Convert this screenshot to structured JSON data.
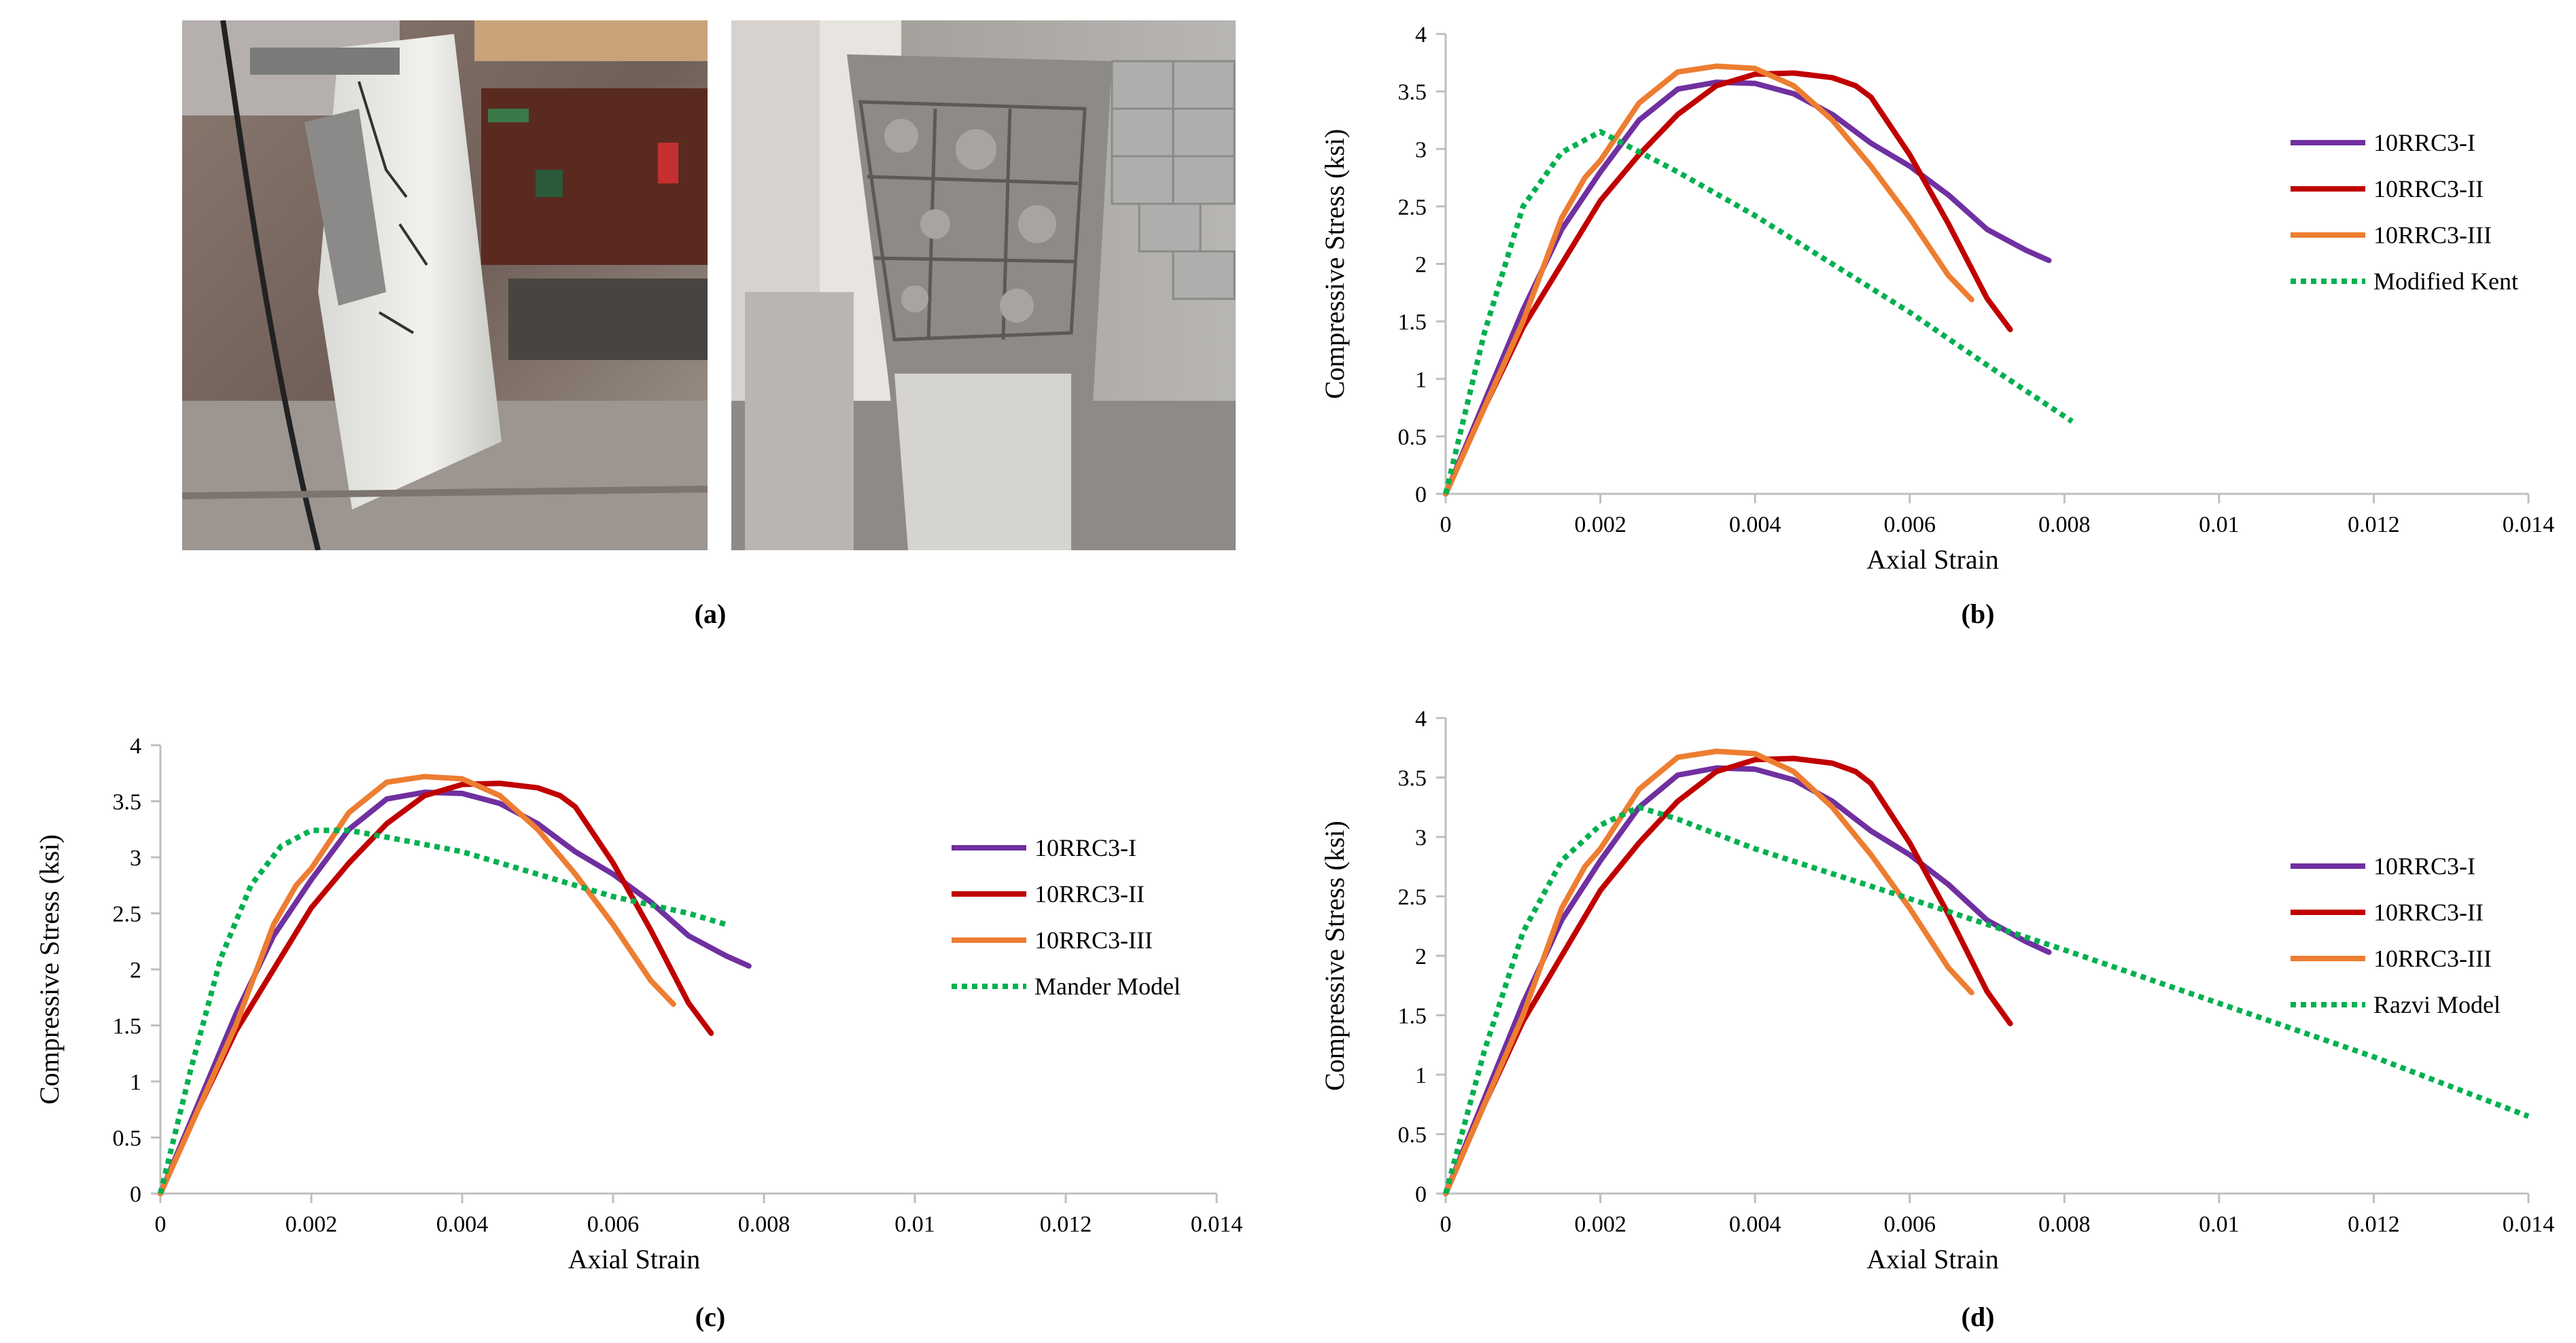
{
  "panel_labels": [
    "(a)",
    "(b)",
    "(c)",
    "(d)"
  ],
  "colors": {
    "purple": "#7030a0",
    "red": "#c00000",
    "orange": "#ed7d31",
    "green": "#00b050",
    "axis": "#bfbfbf"
  },
  "chart_data": [
    {
      "id": "b",
      "type": "line",
      "xlabel": "Axial Strain",
      "ylabel": "Compressive Stress (ksi)",
      "xlim": [
        0,
        0.014
      ],
      "ylim": [
        0,
        4
      ],
      "xticks": [
        "0",
        "0.002",
        "0.004",
        "0.006",
        "0.008",
        "0.01",
        "0.012",
        "0.014"
      ],
      "yticks": [
        "0",
        "0.5",
        "1",
        "1.5",
        "2",
        "2.5",
        "3",
        "3.5",
        "4"
      ],
      "legend_position": "right",
      "series": [
        {
          "name": "10RRC3-I",
          "color": "#7030a0",
          "dash": "solid",
          "x": [
            0,
            0.0005,
            0.001,
            0.0015,
            0.002,
            0.0025,
            0.003,
            0.0035,
            0.004,
            0.0045,
            0.005,
            0.0055,
            0.006,
            0.0065,
            0.007,
            0.0075,
            0.0078
          ],
          "y": [
            0,
            0.8,
            1.6,
            2.3,
            2.8,
            3.25,
            3.52,
            3.58,
            3.57,
            3.48,
            3.3,
            3.05,
            2.85,
            2.6,
            2.3,
            2.12,
            2.03
          ]
        },
        {
          "name": "10RRC3-II",
          "color": "#c00000",
          "dash": "solid",
          "x": [
            0,
            0.0005,
            0.001,
            0.0015,
            0.002,
            0.0025,
            0.003,
            0.0035,
            0.004,
            0.0045,
            0.005,
            0.0053,
            0.0055,
            0.006,
            0.0065,
            0.007,
            0.0073
          ],
          "y": [
            0,
            0.75,
            1.45,
            2.0,
            2.55,
            2.95,
            3.3,
            3.55,
            3.65,
            3.66,
            3.62,
            3.55,
            3.45,
            2.95,
            2.35,
            1.7,
            1.43
          ]
        },
        {
          "name": "10RRC3-III",
          "color": "#ed7d31",
          "dash": "solid",
          "x": [
            0,
            0.0005,
            0.001,
            0.0015,
            0.0018,
            0.002,
            0.0025,
            0.003,
            0.0035,
            0.004,
            0.0045,
            0.005,
            0.0055,
            0.006,
            0.0065,
            0.0068
          ],
          "y": [
            0,
            0.75,
            1.5,
            2.4,
            2.75,
            2.9,
            3.4,
            3.67,
            3.72,
            3.7,
            3.55,
            3.25,
            2.85,
            2.4,
            1.9,
            1.69
          ]
        },
        {
          "name": "Modified Kent",
          "color": "#00b050",
          "dash": "dotted",
          "x": [
            0,
            0.0005,
            0.001,
            0.0015,
            0.002,
            0.003,
            0.004,
            0.005,
            0.006,
            0.007,
            0.0081
          ],
          "y": [
            0,
            1.4,
            2.5,
            2.97,
            3.15,
            2.8,
            2.42,
            2.0,
            1.58,
            1.12,
            0.63
          ]
        }
      ]
    },
    {
      "id": "c",
      "type": "line",
      "xlabel": "Axial Strain",
      "ylabel": "Compressive Stress (ksi)",
      "xlim": [
        0,
        0.014
      ],
      "ylim": [
        0,
        4
      ],
      "xticks": [
        "0",
        "0.002",
        "0.004",
        "0.006",
        "0.008",
        "0.01",
        "0.012",
        "0.014"
      ],
      "yticks": [
        "0",
        "0.5",
        "1",
        "1.5",
        "2",
        "2.5",
        "3",
        "3.5",
        "4"
      ],
      "legend_position": "right",
      "series": [
        {
          "name": "10RRC3-I",
          "color": "#7030a0",
          "dash": "solid",
          "x": [
            0,
            0.0005,
            0.001,
            0.0015,
            0.002,
            0.0025,
            0.003,
            0.0035,
            0.004,
            0.0045,
            0.005,
            0.0055,
            0.006,
            0.0065,
            0.007,
            0.0075,
            0.0078
          ],
          "y": [
            0,
            0.8,
            1.6,
            2.3,
            2.8,
            3.25,
            3.52,
            3.58,
            3.57,
            3.48,
            3.3,
            3.05,
            2.85,
            2.6,
            2.3,
            2.12,
            2.03
          ]
        },
        {
          "name": "10RRC3-II",
          "color": "#c00000",
          "dash": "solid",
          "x": [
            0,
            0.0005,
            0.001,
            0.0015,
            0.002,
            0.0025,
            0.003,
            0.0035,
            0.004,
            0.0045,
            0.005,
            0.0053,
            0.0055,
            0.006,
            0.0065,
            0.007,
            0.0073
          ],
          "y": [
            0,
            0.75,
            1.45,
            2.0,
            2.55,
            2.95,
            3.3,
            3.55,
            3.65,
            3.66,
            3.62,
            3.55,
            3.45,
            2.95,
            2.35,
            1.7,
            1.43
          ]
        },
        {
          "name": "10RRC3-III",
          "color": "#ed7d31",
          "dash": "solid",
          "x": [
            0,
            0.0005,
            0.001,
            0.0015,
            0.0018,
            0.002,
            0.0025,
            0.003,
            0.0035,
            0.004,
            0.0045,
            0.005,
            0.0055,
            0.006,
            0.0065,
            0.0068
          ],
          "y": [
            0,
            0.75,
            1.5,
            2.4,
            2.75,
            2.9,
            3.4,
            3.67,
            3.72,
            3.7,
            3.55,
            3.25,
            2.85,
            2.4,
            1.9,
            1.69
          ]
        },
        {
          "name": "Mander Model",
          "color": "#00b050",
          "dash": "dotted",
          "x": [
            0,
            0.0004,
            0.0008,
            0.0012,
            0.0016,
            0.002,
            0.0025,
            0.003,
            0.004,
            0.005,
            0.006,
            0.007,
            0.0075
          ],
          "y": [
            0,
            1.1,
            2.1,
            2.75,
            3.1,
            3.24,
            3.24,
            3.18,
            3.05,
            2.85,
            2.65,
            2.5,
            2.4
          ]
        }
      ]
    },
    {
      "id": "d",
      "type": "line",
      "xlabel": "Axial Strain",
      "ylabel": "Compressive Stress (ksi)",
      "xlim": [
        0,
        0.014
      ],
      "ylim": [
        0,
        4
      ],
      "xticks": [
        "0",
        "0.002",
        "0.004",
        "0.006",
        "0.008",
        "0.01",
        "0.012",
        "0.014"
      ],
      "yticks": [
        "0",
        "0.5",
        "1",
        "1.5",
        "2",
        "2.5",
        "3",
        "3.5",
        "4"
      ],
      "legend_position": "right",
      "series": [
        {
          "name": "10RRC3-I",
          "color": "#7030a0",
          "dash": "solid",
          "x": [
            0,
            0.0005,
            0.001,
            0.0015,
            0.002,
            0.0025,
            0.003,
            0.0035,
            0.004,
            0.0045,
            0.005,
            0.0055,
            0.006,
            0.0065,
            0.007,
            0.0075,
            0.0078
          ],
          "y": [
            0,
            0.8,
            1.6,
            2.3,
            2.8,
            3.25,
            3.52,
            3.58,
            3.57,
            3.48,
            3.3,
            3.05,
            2.85,
            2.6,
            2.3,
            2.12,
            2.03
          ]
        },
        {
          "name": "10RRC3-II",
          "color": "#c00000",
          "dash": "solid",
          "x": [
            0,
            0.0005,
            0.001,
            0.0015,
            0.002,
            0.0025,
            0.003,
            0.0035,
            0.004,
            0.0045,
            0.005,
            0.0053,
            0.0055,
            0.006,
            0.0065,
            0.007,
            0.0073
          ],
          "y": [
            0,
            0.75,
            1.45,
            2.0,
            2.55,
            2.95,
            3.3,
            3.55,
            3.65,
            3.66,
            3.62,
            3.55,
            3.45,
            2.95,
            2.35,
            1.7,
            1.43
          ]
        },
        {
          "name": "10RRC3-III",
          "color": "#ed7d31",
          "dash": "solid",
          "x": [
            0,
            0.0005,
            0.001,
            0.0015,
            0.0018,
            0.002,
            0.0025,
            0.003,
            0.0035,
            0.004,
            0.0045,
            0.005,
            0.0055,
            0.006,
            0.0065,
            0.0068
          ],
          "y": [
            0,
            0.75,
            1.5,
            2.4,
            2.75,
            2.9,
            3.4,
            3.67,
            3.72,
            3.7,
            3.55,
            3.25,
            2.85,
            2.4,
            1.9,
            1.69
          ]
        },
        {
          "name": "Razvi Model",
          "color": "#00b050",
          "dash": "dotted",
          "x": [
            0,
            0.0005,
            0.001,
            0.0015,
            0.002,
            0.0025,
            0.003,
            0.004,
            0.006,
            0.008,
            0.01,
            0.012,
            0.014
          ],
          "y": [
            0,
            1.2,
            2.2,
            2.8,
            3.1,
            3.25,
            3.15,
            2.9,
            2.48,
            2.05,
            1.6,
            1.15,
            0.65
          ]
        }
      ]
    }
  ]
}
